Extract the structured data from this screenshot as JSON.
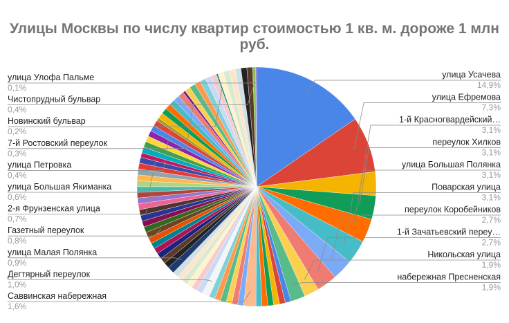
{
  "chart_data": {
    "type": "pie",
    "title": "Улицы Москвы по числу квартир стоимостью 1 кв. м. дороже 1 млн руб.",
    "labeled_slices": [
      {
        "name": "улица Усачева",
        "pct_label": "14,9%",
        "value": 14.9,
        "color": "#4a86e8",
        "side": "right"
      },
      {
        "name": "улица Ефремова",
        "pct_label": "7,3%",
        "value": 7.3,
        "color": "#db4437",
        "side": "right"
      },
      {
        "name": "1-й Красногвардейский…",
        "pct_label": "3,1%",
        "value": 3.1,
        "color": "#f4b400",
        "side": "right"
      },
      {
        "name": "переулок Хилков",
        "pct_label": "3,1%",
        "value": 3.1,
        "color": "#0f9d58",
        "side": "right"
      },
      {
        "name": "улица Большая Полянка",
        "pct_label": "3,1%",
        "value": 3.1,
        "color": "#ff6d01",
        "side": "right"
      },
      {
        "name": "Поварская улица",
        "pct_label": "3,1%",
        "value": 3.1,
        "color": "#46bdc6",
        "side": "right"
      },
      {
        "name": "переулок Коробейников",
        "pct_label": "2,7%",
        "value": 2.7,
        "color": "#7baaf7",
        "side": "right"
      },
      {
        "name": "1-й Зачатьевский переу…",
        "pct_label": "2,7%",
        "value": 2.7,
        "color": "#f07b72",
        "side": "right"
      },
      {
        "name": "Никольская улица",
        "pct_label": "1,9%",
        "value": 1.9,
        "color": "#fcd04f",
        "side": "right"
      },
      {
        "name": "набережная Пресненская",
        "pct_label": "1,9%",
        "value": 1.9,
        "color": "#57bb8a",
        "side": "right"
      },
      {
        "name": "Саввинская набережная",
        "pct_label": "1,6%",
        "value": 1.6,
        "color": "#fdba8c",
        "side": "left"
      },
      {
        "name": "Дегтярный переулок",
        "pct_label": "1,0%",
        "value": 1.0,
        "color": "#f3f6f4",
        "side": "left"
      },
      {
        "name": "улица Малая Полянка",
        "pct_label": "0,9%",
        "value": 0.9,
        "color": "#1e3a6e",
        "side": "left"
      },
      {
        "name": "Газетный переулок",
        "pct_label": "0,8%",
        "value": 0.8,
        "color": "#6b4423",
        "side": "left"
      },
      {
        "name": "2-я Фрунзенская улица",
        "pct_label": "0,7%",
        "value": 0.7,
        "color": "#b3423a",
        "side": "left"
      },
      {
        "name": "улица Большая Якиманка",
        "pct_label": "0,6%",
        "value": 0.6,
        "color": "#c2185b",
        "side": "left"
      },
      {
        "name": "улица Петровка",
        "pct_label": "0,4%",
        "value": 0.4,
        "color": "#9e9d24",
        "side": "left"
      },
      {
        "name": "7-й Ростовский переулок",
        "pct_label": "0,3%",
        "value": 0.3,
        "color": "#6a1b9a",
        "side": "left"
      },
      {
        "name": "Новинский бульвар",
        "pct_label": "0,2%",
        "value": 0.2,
        "color": "#00897b",
        "side": "left"
      },
      {
        "name": "Чистопрудный бульвар",
        "pct_label": "0,4%",
        "value": 0.4,
        "color": "#8bc34a",
        "side": "left"
      },
      {
        "name": "улица Улофа Пальме",
        "pct_label": "0,1%",
        "value": 0.1,
        "color": "#5e35b1",
        "side": "left"
      }
    ],
    "other_slices_total": 45.8,
    "other_palette": [
      "#4a86e8",
      "#db4437",
      "#f4b400",
      "#0f9d58",
      "#ff6d01",
      "#46bdc6",
      "#7baaf7",
      "#f07b72",
      "#fcd04f",
      "#57bb8a",
      "#ff994d",
      "#7ed1d7",
      "#c9daf8",
      "#f4cccc",
      "#fff2cc",
      "#d9ead3",
      "#fce5cd",
      "#d0e0e3",
      "#222222",
      "#5b3a29",
      "#1a237e",
      "#ad1457",
      "#00838f",
      "#e65100",
      "#33691e",
      "#880e4f",
      "#283593",
      "#4e342e",
      "#f06292",
      "#9575cd",
      "#4db6ac",
      "#aed581",
      "#ffb74d",
      "#90a4ae",
      "#e53935",
      "#3949ab",
      "#00acc1",
      "#43a047",
      "#fdd835",
      "#8e24aa"
    ]
  }
}
